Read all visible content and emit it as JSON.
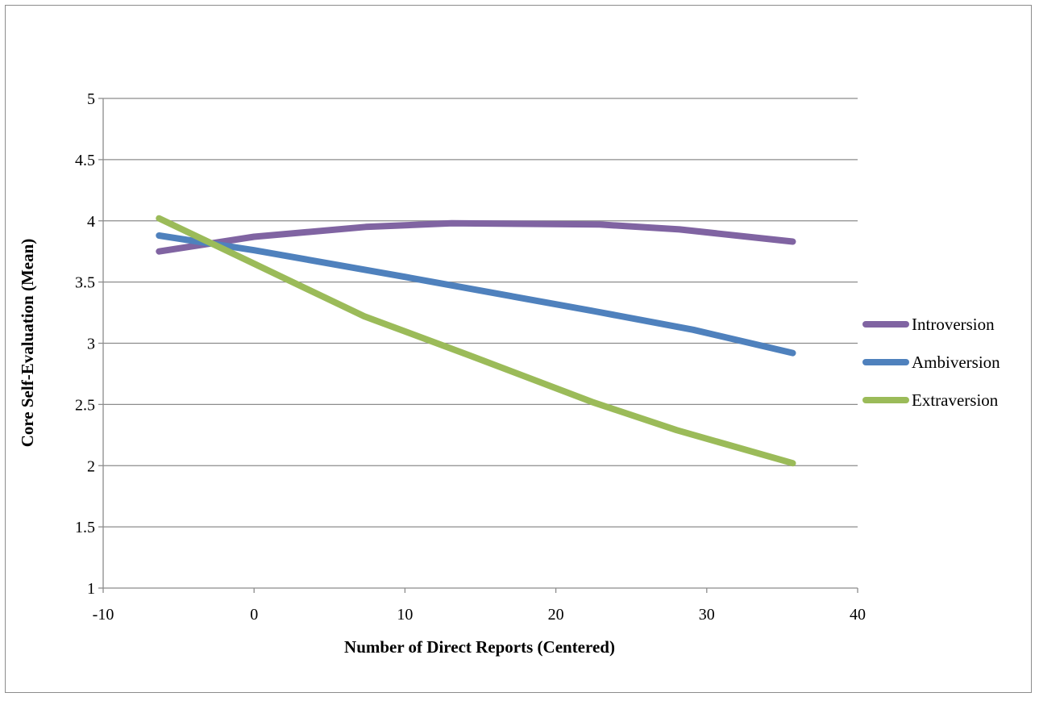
{
  "chart_data": {
    "type": "line",
    "title": "",
    "xlabel": "Number of Direct Reports (Centered)",
    "ylabel": "Core Self-Evaluation (Mean)",
    "xlim": [
      -10,
      40
    ],
    "ylim": [
      1,
      5
    ],
    "xticks": [
      -10,
      0,
      10,
      20,
      30,
      40
    ],
    "yticks": [
      1,
      1.5,
      2,
      2.5,
      3,
      3.5,
      4,
      4.5,
      5
    ],
    "grid": true,
    "legend_position": "right",
    "series": [
      {
        "name": "Introversion",
        "color": "#8064a2",
        "x": [
          -6.3,
          0,
          7.4,
          13.1,
          22.9,
          28.2,
          35.7
        ],
        "y": [
          3.75,
          3.87,
          3.95,
          3.98,
          3.97,
          3.93,
          3.83
        ]
      },
      {
        "name": "Ambiversion",
        "color": "#4f81bd",
        "x": [
          -6.3,
          0,
          10.1,
          22.6,
          29.1,
          35.7
        ],
        "y": [
          3.88,
          3.76,
          3.54,
          3.26,
          3.11,
          2.92
        ]
      },
      {
        "name": "Extraversion",
        "color": "#9bbb59",
        "x": [
          -6.3,
          0,
          7.3,
          14.3,
          22.4,
          28.0,
          35.7
        ],
        "y": [
          4.02,
          3.65,
          3.22,
          2.9,
          2.52,
          2.29,
          2.02
        ]
      }
    ]
  }
}
